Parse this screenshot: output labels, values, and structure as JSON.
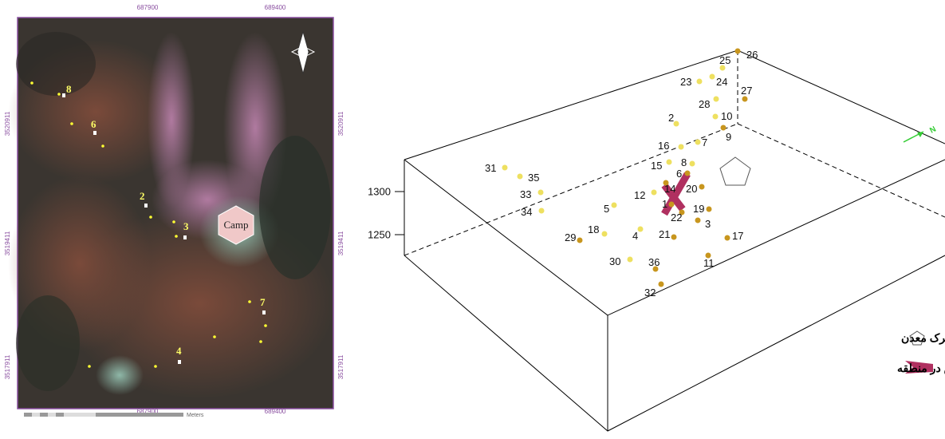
{
  "map": {
    "x_labels_top": [
      "687900",
      "689400"
    ],
    "x_labels_bottom": [
      "687900",
      "689400"
    ],
    "y_labels_left": [
      "3520911",
      "3519411",
      "3517911"
    ],
    "y_labels_right": [
      "3520911",
      "3519411",
      "3517911"
    ],
    "camp": "Camp",
    "points": [
      "8",
      "6",
      "2",
      "3",
      "7",
      "4"
    ],
    "scale_unit": "Meters"
  },
  "diagram": {
    "elevation_labels": [
      "1300",
      "1250"
    ],
    "points": [
      "26",
      "25",
      "24",
      "23",
      "27",
      "28",
      "10",
      "2",
      "9",
      "7",
      "16",
      "15",
      "8",
      "6",
      "14",
      "20",
      "12",
      "1",
      "19",
      "5",
      "22",
      "3",
      "34",
      "33",
      "35",
      "31",
      "18",
      "4",
      "21",
      "29",
      "17",
      "30",
      "36",
      "11",
      "32"
    ],
    "legend": [
      "شهرک معدن",
      "حداکثر کرنش در منطقه"
    ]
  }
}
